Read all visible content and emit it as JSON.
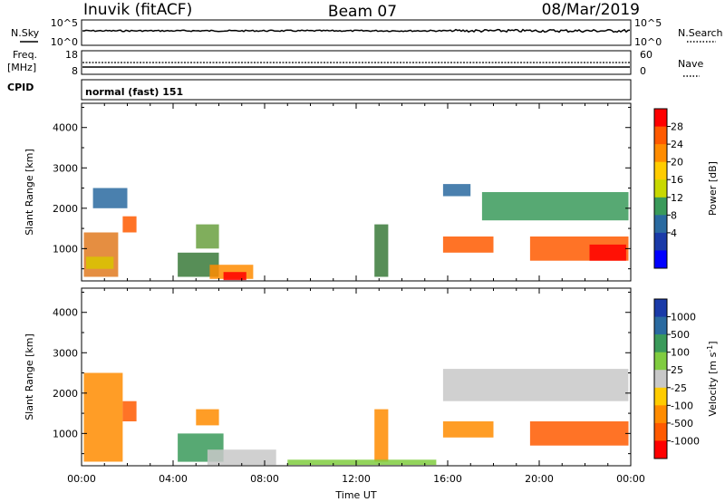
{
  "header": {
    "station": "Inuvik (fitACF)",
    "beam": "Beam 07",
    "date": "08/Mar/2019"
  },
  "top_panels": {
    "nsky_label": "N.Sky",
    "nsky_ticks": [
      "10^5",
      "10^0"
    ],
    "nsearch_label": "N.Search",
    "nsearch_ticks": [
      "10^5",
      "10^0"
    ],
    "freq_label": "Freq.",
    "freq_unit": "[MHz]",
    "freq_ticks": [
      "18",
      "8"
    ],
    "nave_label": "Nave",
    "nave_ticks": [
      "60",
      "0"
    ],
    "cpid_label": "CPID",
    "cpid_value": "normal (fast) 151"
  },
  "chart_data": [
    {
      "type": "heatmap",
      "name": "power-panel",
      "ylabel": "Slant Range [km]",
      "xlabel": "",
      "xlim_hours": [
        0,
        24
      ],
      "ylim": [
        200,
        4600
      ],
      "x_ticks": [
        "00:00",
        "04:00",
        "08:00",
        "12:00",
        "16:00",
        "20:00",
        "00:00"
      ],
      "y_ticks": [
        "1000",
        "2000",
        "3000",
        "4000"
      ],
      "y_tick_values": [
        1000,
        2000,
        3000,
        4000
      ],
      "colorbar_label": "Power [dB]",
      "colorbar_ticks": [
        "28",
        "24",
        "20",
        "16",
        "12",
        "8",
        "4"
      ],
      "colorbar_colors": [
        "#ff0000",
        "#ff5a00",
        "#ff8c00",
        "#ffcc00",
        "#c8d800",
        "#3a9a5a",
        "#2a6aa0",
        "#1a3aa8",
        "#0000ff"
      ],
      "regions": [
        {
          "x0": 0.1,
          "x1": 1.6,
          "y0": 300,
          "y1": 1400,
          "color": "#e07a20"
        },
        {
          "x0": 0.2,
          "x1": 1.4,
          "y0": 500,
          "y1": 800,
          "color": "#d9c400"
        },
        {
          "x0": 1.8,
          "x1": 2.4,
          "y0": 1400,
          "y1": 1800,
          "color": "#ff5a00"
        },
        {
          "x0": 4.2,
          "x1": 6.0,
          "y0": 300,
          "y1": 900,
          "color": "#3a7a3a"
        },
        {
          "x0": 5.6,
          "x1": 7.5,
          "y0": 250,
          "y1": 600,
          "color": "#ff8c00"
        },
        {
          "x0": 6.2,
          "x1": 7.2,
          "y0": 220,
          "y1": 420,
          "color": "#ff0000"
        },
        {
          "x0": 5.0,
          "x1": 6.0,
          "y0": 1000,
          "y1": 1600,
          "color": "#6aa040"
        },
        {
          "x0": 12.8,
          "x1": 13.4,
          "y0": 300,
          "y1": 1600,
          "color": "#3a7a3a"
        },
        {
          "x0": 15.8,
          "x1": 18.0,
          "y0": 900,
          "y1": 1300,
          "color": "#ff5a00"
        },
        {
          "x0": 15.8,
          "x1": 17.0,
          "y0": 2300,
          "y1": 2600,
          "color": "#2a6aa0"
        },
        {
          "x0": 17.5,
          "x1": 23.9,
          "y0": 1700,
          "y1": 2400,
          "color": "#3a9a5a"
        },
        {
          "x0": 19.6,
          "x1": 23.9,
          "y0": 700,
          "y1": 1300,
          "color": "#ff5a00"
        },
        {
          "x0": 22.2,
          "x1": 23.8,
          "y0": 700,
          "y1": 1100,
          "color": "#ff0000"
        },
        {
          "x0": 0.5,
          "x1": 2.0,
          "y0": 2000,
          "y1": 2500,
          "color": "#2a6aa0"
        }
      ]
    },
    {
      "type": "heatmap",
      "name": "velocity-panel",
      "ylabel": "Slant Range [km]",
      "xlabel": "Time UT",
      "xlim_hours": [
        0,
        24
      ],
      "ylim": [
        200,
        4600
      ],
      "x_ticks": [
        "00:00",
        "04:00",
        "08:00",
        "12:00",
        "16:00",
        "20:00",
        "00:00"
      ],
      "y_ticks": [
        "1000",
        "2000",
        "3000",
        "4000"
      ],
      "y_tick_values": [
        1000,
        2000,
        3000,
        4000
      ],
      "colorbar_label": "Velocity [m s",
      "colorbar_superscript": "-1",
      "colorbar_ticks": [
        "1000",
        "500",
        "100",
        "25",
        "-25",
        "-100",
        "-500",
        "-1000"
      ],
      "colorbar_colors": [
        "#1a3aa8",
        "#2a6aa0",
        "#3a9a5a",
        "#80cc40",
        "#c8c8c8",
        "#ffcc00",
        "#ff8c00",
        "#ff5a00",
        "#ff0000"
      ],
      "regions": [
        {
          "x0": 0.1,
          "x1": 1.8,
          "y0": 300,
          "y1": 2500,
          "color": "#ff8c00"
        },
        {
          "x0": 1.8,
          "x1": 2.4,
          "y0": 1300,
          "y1": 1800,
          "color": "#ff5a00"
        },
        {
          "x0": 4.2,
          "x1": 6.2,
          "y0": 300,
          "y1": 1000,
          "color": "#3a9a5a"
        },
        {
          "x0": 5.5,
          "x1": 8.5,
          "y0": 220,
          "y1": 600,
          "color": "#c8c8c8"
        },
        {
          "x0": 5.0,
          "x1": 6.0,
          "y0": 1200,
          "y1": 1600,
          "color": "#ff8c00"
        },
        {
          "x0": 12.8,
          "x1": 13.4,
          "y0": 300,
          "y1": 1600,
          "color": "#ff8c00"
        },
        {
          "x0": 15.8,
          "x1": 18.0,
          "y0": 900,
          "y1": 1300,
          "color": "#ff8c00"
        },
        {
          "x0": 15.8,
          "x1": 23.9,
          "y0": 1800,
          "y1": 2600,
          "color": "#c8c8c8"
        },
        {
          "x0": 19.6,
          "x1": 23.9,
          "y0": 700,
          "y1": 1300,
          "color": "#ff5a00"
        },
        {
          "x0": 9.0,
          "x1": 15.5,
          "y0": 220,
          "y1": 350,
          "color": "#80cc40"
        }
      ]
    }
  ]
}
